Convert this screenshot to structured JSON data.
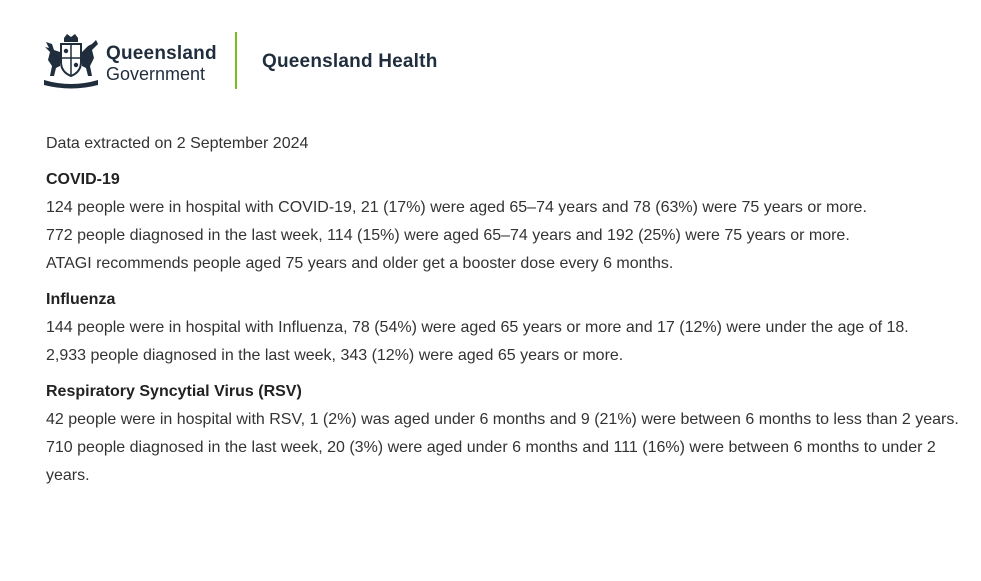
{
  "header": {
    "gov_line1": "Queensland",
    "gov_line2": "Government",
    "department": "Queensland Health",
    "crest_icon": "queensland-coat-of-arms",
    "divider_color": "#78be20",
    "text_color": "#1f2d3d"
  },
  "extract_date": "Data extracted on 2 September 2024",
  "sections": [
    {
      "heading": "COVID-19",
      "lines": [
        "124 people were in hospital with COVID-19, 21 (17%) were aged 65–74 years and 78 (63%) were 75 years or more.",
        "772 people diagnosed in the last week, 114 (15%) were aged 65–74 years and 192 (25%) were 75 years or more.",
        "ATAGI recommends people aged 75 years and older get a booster dose every 6 months."
      ]
    },
    {
      "heading": "Influenza",
      "lines": [
        "144 people were in hospital with Influenza, 78 (54%) were aged 65 years or more and 17 (12%) were under the age of 18.",
        "2,933 people diagnosed in the last week, 343 (12%) were aged 65 years or more."
      ]
    },
    {
      "heading": "Respiratory Syncytial Virus (RSV)",
      "lines": [
        "42 people were in hospital with RSV, 1 (2%) was aged under 6 months and 9 (21%) were between 6 months to less than 2 years.",
        "710 people diagnosed in the last week, 20 (3%) were aged under 6 months and 111 (16%) were between 6 months to under 2 years."
      ]
    }
  ]
}
